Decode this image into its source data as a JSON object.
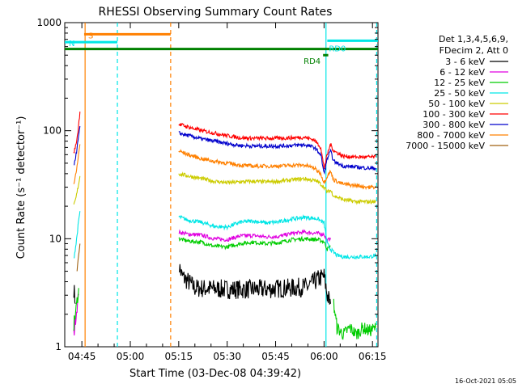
{
  "chart_data": {
    "type": "line",
    "title": "RHESSI Observing Summary Count Rates",
    "xlabel": "Start Time (03-Dec-08 04:39:42)",
    "ylabel": "Count Rate (s⁻¹ detector⁻¹)",
    "yscale": "log",
    "ylim": [
      1,
      1000
    ],
    "xlim_minutes_after_0400": [
      279.7,
      376.7
    ],
    "x_ticks": [
      {
        "label": "04:45",
        "m": 285
      },
      {
        "label": "05:00",
        "m": 300
      },
      {
        "label": "05:15",
        "m": 315
      },
      {
        "label": "05:30",
        "m": 330
      },
      {
        "label": "05:45",
        "m": 345
      },
      {
        "label": "06:00",
        "m": 360
      },
      {
        "label": "06:15",
        "m": 375
      }
    ],
    "y_ticks": [
      {
        "label": "1",
        "v": 1
      },
      {
        "label": "10",
        "v": 10
      },
      {
        "label": "100",
        "v": 100
      },
      {
        "label": "1000",
        "v": 1000
      }
    ],
    "legend": {
      "placement": "right",
      "header": [
        "Det 1,3,4,5,6,9,",
        "FDecim 2, Att 0"
      ]
    },
    "series": [
      {
        "name": "3 - 6 keV",
        "color": "#000000",
        "segments": [
          [
            [
              282.5,
              3.5
            ],
            [
              283.0,
              2.5
            ]
          ],
          [
            [
              315.2,
              5.5
            ],
            [
              316.0,
              4.5
            ],
            [
              318.0,
              4.0
            ],
            [
              320.0,
              3.5
            ],
            [
              330.0,
              3.4
            ],
            [
              340.0,
              3.4
            ],
            [
              350.0,
              3.5
            ],
            [
              355.0,
              3.6
            ],
            [
              358.0,
              4.2
            ],
            [
              360.0,
              4.5
            ],
            [
              361.0,
              3.0
            ],
            [
              362.0,
              2.5
            ]
          ]
        ]
      },
      {
        "name": "6 - 12 keV",
        "color": "#e000e0",
        "segments": [
          [
            [
              282.5,
              1.3
            ],
            [
              283.2,
              2.0
            ],
            [
              284.0,
              3.0
            ]
          ],
          [
            [
              315.0,
              11.5
            ],
            [
              318.0,
              11.0
            ],
            [
              322.0,
              10.8
            ],
            [
              326.0,
              10.0
            ],
            [
              330.0,
              9.8
            ],
            [
              334.0,
              10.6
            ],
            [
              338.0,
              10.7
            ],
            [
              342.0,
              10.4
            ],
            [
              346.0,
              10.5
            ],
            [
              350.0,
              11.2
            ],
            [
              354.0,
              11.5
            ],
            [
              358.0,
              11.2
            ],
            [
              360.0,
              11.0
            ],
            [
              361.0,
              9.5
            ],
            [
              362.0,
              10.2
            ]
          ]
        ]
      },
      {
        "name": "12 - 25 keV",
        "color": "#00cc00",
        "segments": [
          [
            [
              282.5,
              1.6
            ],
            [
              283.2,
              2.2
            ],
            [
              284.0,
              3.5
            ]
          ],
          [
            [
              315.0,
              10.0
            ],
            [
              318.0,
              9.5
            ],
            [
              322.0,
              9.3
            ],
            [
              326.0,
              8.5
            ],
            [
              330.0,
              8.4
            ],
            [
              334.0,
              9.0
            ],
            [
              338.0,
              9.3
            ],
            [
              342.0,
              9.0
            ],
            [
              346.0,
              9.2
            ],
            [
              350.0,
              9.8
            ],
            [
              354.0,
              10.0
            ],
            [
              358.0,
              9.8
            ],
            [
              360.0,
              9.4
            ],
            [
              361.0,
              8.0
            ],
            [
              362.0,
              8.6
            ]
          ],
          [
            [
              363.0,
              2.5
            ],
            [
              364.0,
              1.5
            ],
            [
              366.0,
              1.3
            ],
            [
              368.0,
              1.5
            ],
            [
              370.0,
              1.3
            ],
            [
              372.0,
              1.5
            ],
            [
              374.0,
              1.4
            ],
            [
              376.0,
              1.5
            ]
          ]
        ]
      },
      {
        "name": "25 - 50 keV",
        "color": "#00e6e6",
        "segments": [
          [
            [
              282.5,
              6.5
            ],
            [
              283.2,
              9.0
            ],
            [
              283.8,
              13.0
            ],
            [
              284.4,
              18.0
            ]
          ],
          [
            [
              315.0,
              16.0
            ],
            [
              318.0,
              14.8
            ],
            [
              322.0,
              14.2
            ],
            [
              326.0,
              13.0
            ],
            [
              330.0,
              12.8
            ],
            [
              334.0,
              14.2
            ],
            [
              338.0,
              14.6
            ],
            [
              342.0,
              14.0
            ],
            [
              346.0,
              14.3
            ],
            [
              350.0,
              15.2
            ],
            [
              354.0,
              15.8
            ],
            [
              358.0,
              15.3
            ],
            [
              360.0,
              14.0
            ],
            [
              361.0,
              9.0
            ],
            [
              362.0,
              8.0
            ],
            [
              364.0,
              7.0
            ],
            [
              366.0,
              6.8
            ],
            [
              370.0,
              6.8
            ],
            [
              374.0,
              6.8
            ],
            [
              376.0,
              7.0
            ]
          ]
        ]
      },
      {
        "name": "50 - 100 keV",
        "color": "#cccc00",
        "segments": [
          [
            [
              282.5,
              20.0
            ],
            [
              283.2,
              24.0
            ],
            [
              283.8,
              30.0
            ],
            [
              284.4,
              38.0
            ]
          ],
          [
            [
              315.0,
              40.0
            ],
            [
              318.0,
              38.0
            ],
            [
              322.0,
              36.0
            ],
            [
              326.0,
              34.0
            ],
            [
              330.0,
              33.0
            ],
            [
              334.0,
              33.5
            ],
            [
              338.0,
              34.0
            ],
            [
              342.0,
              33.5
            ],
            [
              346.0,
              34.0
            ],
            [
              350.0,
              35.0
            ],
            [
              354.0,
              36.0
            ],
            [
              358.0,
              34.0
            ],
            [
              360.0,
              30.0
            ],
            [
              361.0,
              27.0
            ],
            [
              362.0,
              28.0
            ],
            [
              363.0,
              25.0
            ],
            [
              366.0,
              23.0
            ],
            [
              370.0,
              22.0
            ],
            [
              374.0,
              22.0
            ],
            [
              376.0,
              22.0
            ]
          ]
        ]
      },
      {
        "name": "100 - 300 keV",
        "color": "#ff0000",
        "segments": [
          [
            [
              282.5,
              62.0
            ],
            [
              283.2,
              75.0
            ],
            [
              283.8,
              100.0
            ],
            [
              284.4,
              150.0
            ]
          ],
          [
            [
              315.0,
              115.0
            ],
            [
              318.0,
              108.0
            ],
            [
              322.0,
              100.0
            ],
            [
              326.0,
              95.0
            ],
            [
              330.0,
              90.0
            ],
            [
              334.0,
              86.0
            ],
            [
              338.0,
              85.0
            ],
            [
              342.0,
              85.0
            ],
            [
              346.0,
              85.0
            ],
            [
              350.0,
              86.0
            ],
            [
              354.0,
              87.0
            ],
            [
              357.0,
              82.0
            ],
            [
              359.0,
              70.0
            ],
            [
              360.0,
              45.0
            ],
            [
              361.0,
              60.0
            ],
            [
              362.0,
              75.0
            ],
            [
              363.0,
              65.0
            ],
            [
              366.0,
              58.0
            ],
            [
              370.0,
              57.0
            ],
            [
              374.0,
              57.0
            ],
            [
              376.0,
              57.0
            ]
          ]
        ]
      },
      {
        "name": "300 - 800 keV",
        "color": "#0000cc",
        "segments": [
          [
            [
              282.5,
              48.0
            ],
            [
              283.2,
              60.0
            ],
            [
              283.8,
              80.0
            ],
            [
              284.4,
              110.0
            ]
          ],
          [
            [
              315.0,
              95.0
            ],
            [
              318.0,
              90.0
            ],
            [
              322.0,
              84.0
            ],
            [
              326.0,
              80.0
            ],
            [
              330.0,
              76.0
            ],
            [
              334.0,
              73.0
            ],
            [
              338.0,
              72.0
            ],
            [
              342.0,
              72.0
            ],
            [
              346.0,
              72.0
            ],
            [
              350.0,
              73.0
            ],
            [
              354.0,
              74.0
            ],
            [
              357.0,
              70.0
            ],
            [
              359.0,
              60.0
            ],
            [
              360.0,
              40.0
            ],
            [
              361.0,
              55.0
            ],
            [
              362.0,
              65.0
            ],
            [
              363.0,
              52.0
            ],
            [
              366.0,
              47.0
            ],
            [
              370.0,
              46.0
            ],
            [
              374.0,
              45.0
            ],
            [
              376.0,
              45.0
            ]
          ]
        ]
      },
      {
        "name": "800 - 7000 keV",
        "color": "#ff8000",
        "segments": [
          [
            [
              282.5,
              32.0
            ],
            [
              283.2,
              40.0
            ],
            [
              283.8,
              55.0
            ],
            [
              284.4,
              75.0
            ]
          ],
          [
            [
              315.0,
              65.0
            ],
            [
              318.0,
              60.0
            ],
            [
              322.0,
              55.0
            ],
            [
              326.0,
              52.0
            ],
            [
              330.0,
              50.0
            ],
            [
              334.0,
              48.0
            ],
            [
              338.0,
              47.0
            ],
            [
              342.0,
              47.0
            ],
            [
              346.0,
              47.0
            ],
            [
              350.0,
              48.0
            ],
            [
              354.0,
              48.0
            ],
            [
              357.0,
              45.0
            ],
            [
              359.0,
              40.0
            ],
            [
              360.0,
              33.0
            ],
            [
              361.0,
              38.0
            ],
            [
              362.0,
              42.0
            ],
            [
              363.0,
              35.0
            ],
            [
              366.0,
              32.0
            ],
            [
              370.0,
              31.0
            ],
            [
              374.0,
              30.0
            ],
            [
              376.0,
              30.0
            ]
          ]
        ]
      },
      {
        "name": "7000 - 15000 keV",
        "color": "#a06010",
        "segments": [
          [
            [
              283.5,
              5.0
            ],
            [
              284.0,
              7.0
            ],
            [
              284.4,
              9.0
            ]
          ]
        ]
      }
    ],
    "annotations": {
      "vertical_lines": [
        {
          "m": 286.0,
          "color": "#ff8000",
          "dash": false
        },
        {
          "m": 296.0,
          "color": "#00e6e6",
          "dash": true
        },
        {
          "m": 312.5,
          "color": "#ff8000",
          "dash": true
        },
        {
          "m": 360.6,
          "color": "#00e6e6",
          "dash": false
        },
        {
          "m": 376.3,
          "color": "#00e6e6",
          "dash": true
        }
      ],
      "bars": [
        {
          "label": "S",
          "color": "#ff8000",
          "m0": 285.7,
          "m1": 312.5,
          "v": 780
        },
        {
          "label": "N",
          "color": "#00e6e6",
          "m0": 279.7,
          "m1": 296.0,
          "v": 660
        },
        {
          "label": "",
          "color": "#008000",
          "m0": 279.7,
          "m1": 376.7,
          "v": 570
        },
        {
          "label": "RD4",
          "color": "#008000",
          "m0": 359.7,
          "m1": 361.3,
          "v": 500
        },
        {
          "label": "RD0",
          "color": "#00e6e6",
          "m0": 361.0,
          "m1": 376.7,
          "v": 680
        }
      ]
    }
  },
  "footer_date": "16-Oct-2021 05:05"
}
